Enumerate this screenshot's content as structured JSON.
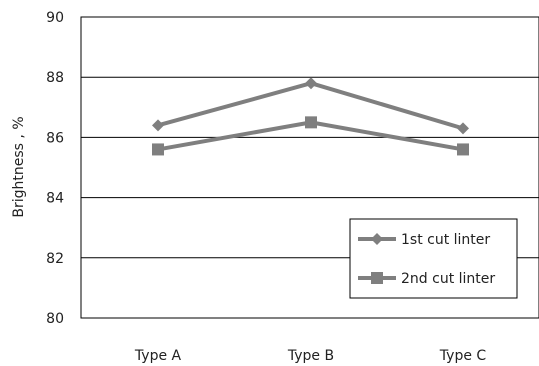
{
  "chart_data": {
    "type": "line",
    "title": "",
    "xlabel": "",
    "ylabel": "Brightness , %",
    "categories": [
      "Type A",
      "Type B",
      "Type C"
    ],
    "ylim": [
      80,
      90
    ],
    "yticks": [
      80,
      82,
      84,
      86,
      88,
      90
    ],
    "grid": true,
    "legend_position": "bottom-right",
    "series": [
      {
        "name": "1st cut linter",
        "values": [
          86.4,
          87.8,
          86.3
        ],
        "marker": "diamond",
        "color": "#7f7f7f"
      },
      {
        "name": "2nd cut linter",
        "values": [
          85.6,
          86.5,
          85.6
        ],
        "marker": "square",
        "color": "#7f7f7f"
      }
    ]
  }
}
